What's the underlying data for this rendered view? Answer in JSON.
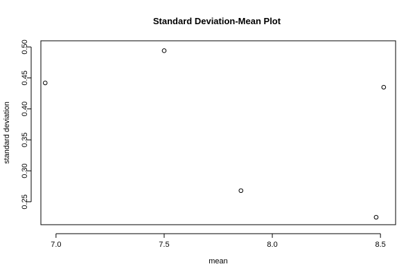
{
  "chart_data": {
    "type": "scatter",
    "title": "Standard Deviation-Mean Plot",
    "xlabel": "mean",
    "ylabel": "standard deviation",
    "xlim": [
      6.93,
      8.57
    ],
    "ylim": [
      0.213,
      0.51
    ],
    "x_ticks": [
      {
        "value": 7.0,
        "label": "7.0"
      },
      {
        "value": 7.5,
        "label": "7.5"
      },
      {
        "value": 8.0,
        "label": "8.0"
      },
      {
        "value": 8.5,
        "label": "8.5"
      }
    ],
    "y_ticks": [
      {
        "value": 0.25,
        "label": "0.25"
      },
      {
        "value": 0.3,
        "label": "0.30"
      },
      {
        "value": 0.35,
        "label": "0.35"
      },
      {
        "value": 0.4,
        "label": "0.40"
      },
      {
        "value": 0.45,
        "label": "0.45"
      },
      {
        "value": 0.5,
        "label": "0.50"
      }
    ],
    "points": [
      {
        "x": 6.95,
        "y": 0.442
      },
      {
        "x": 7.5,
        "y": 0.494
      },
      {
        "x": 7.855,
        "y": 0.268
      },
      {
        "x": 8.48,
        "y": 0.225
      },
      {
        "x": 8.515,
        "y": 0.435
      }
    ],
    "marker": "open-circle",
    "grid": false,
    "legend": "none",
    "colors": {
      "marker": "#000000",
      "axis": "#000000",
      "background": "#ffffff"
    }
  }
}
